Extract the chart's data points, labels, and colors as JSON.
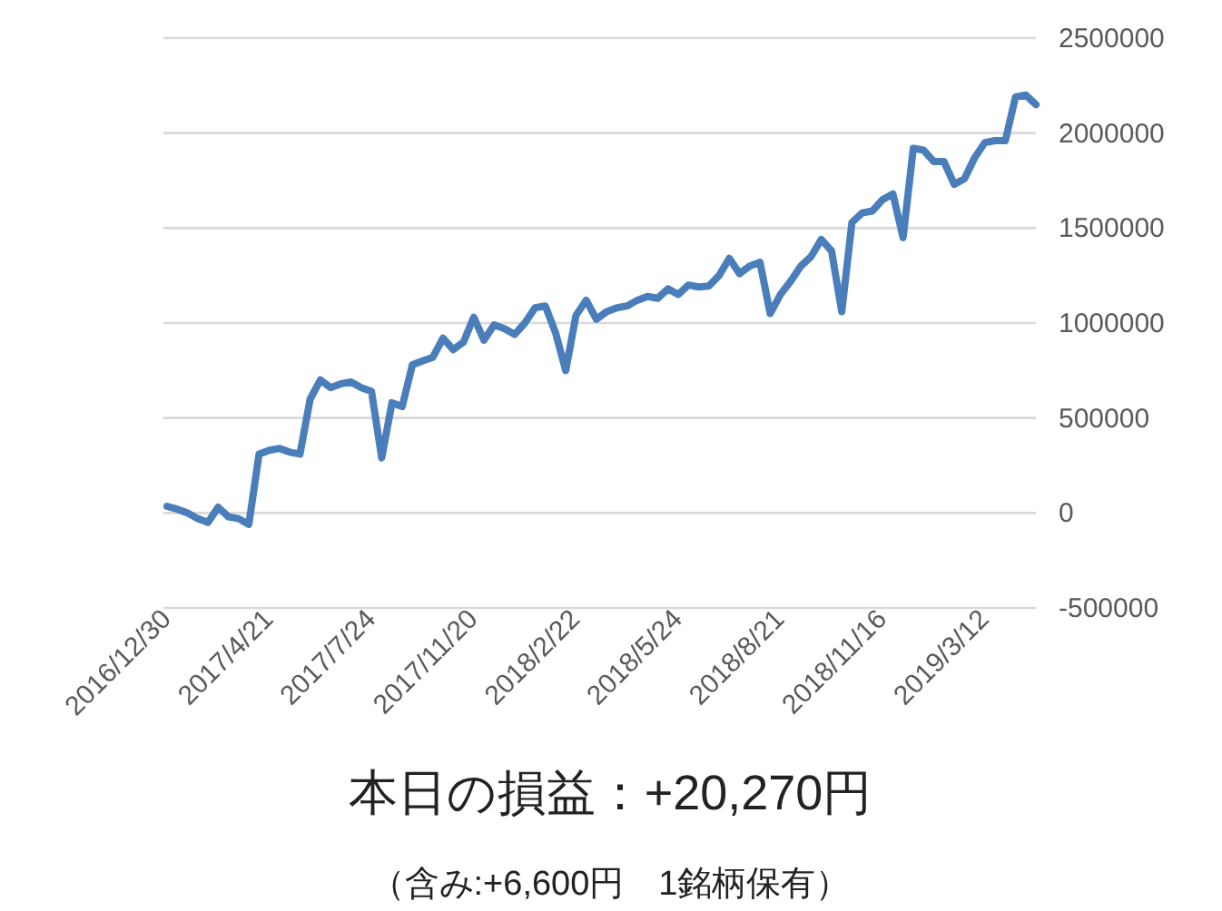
{
  "chart_data": {
    "type": "line",
    "title": "本日の損益：+20,270円",
    "subtitle": "（含み:+6,600円　1銘柄保有）",
    "categories": [
      "2016/12/30",
      null,
      null,
      null,
      null,
      null,
      null,
      null,
      null,
      null,
      "2017/4/21",
      null,
      null,
      null,
      null,
      null,
      null,
      null,
      null,
      null,
      "2017/7/24",
      null,
      null,
      null,
      null,
      null,
      null,
      null,
      null,
      null,
      "2017/11/20",
      null,
      null,
      null,
      null,
      null,
      null,
      null,
      null,
      null,
      "2018/2/22",
      null,
      null,
      null,
      null,
      null,
      null,
      null,
      null,
      null,
      "2018/5/24",
      null,
      null,
      null,
      null,
      null,
      null,
      null,
      null,
      null,
      "2018/8/21",
      null,
      null,
      null,
      null,
      null,
      null,
      null,
      null,
      null,
      "2018/11/16",
      null,
      null,
      null,
      null,
      null,
      null,
      null,
      null,
      null,
      "2019/3/12",
      null,
      null,
      null,
      null,
      null
    ],
    "series": [
      {
        "color": "#4a7ebb",
        "values": [
          35000,
          20000,
          0,
          -30000,
          -50000,
          30000,
          -20000,
          -30000,
          -60000,
          310000,
          330000,
          340000,
          320000,
          310000,
          600000,
          700000,
          660000,
          680000,
          690000,
          660000,
          640000,
          290000,
          580000,
          560000,
          780000,
          800000,
          820000,
          920000,
          860000,
          900000,
          1030000,
          910000,
          990000,
          970000,
          940000,
          1000000,
          1080000,
          1090000,
          950000,
          750000,
          1040000,
          1120000,
          1020000,
          1060000,
          1080000,
          1090000,
          1120000,
          1140000,
          1130000,
          1180000,
          1150000,
          1200000,
          1190000,
          1195000,
          1250000,
          1340000,
          1260000,
          1300000,
          1320000,
          1050000,
          1150000,
          1220000,
          1300000,
          1350000,
          1440000,
          1380000,
          1060000,
          1530000,
          1580000,
          1590000,
          1650000,
          1680000,
          1450000,
          1920000,
          1910000,
          1850000,
          1850000,
          1730000,
          1760000,
          1870000,
          1950000,
          1960000,
          1960000,
          2190000,
          2200000,
          2150000
        ]
      }
    ],
    "ylim": [
      -500000,
      2500000
    ],
    "yticks": [
      -500000,
      0,
      500000,
      1000000,
      1500000,
      2000000,
      2500000
    ],
    "grid": "y",
    "line_style": "solid"
  }
}
